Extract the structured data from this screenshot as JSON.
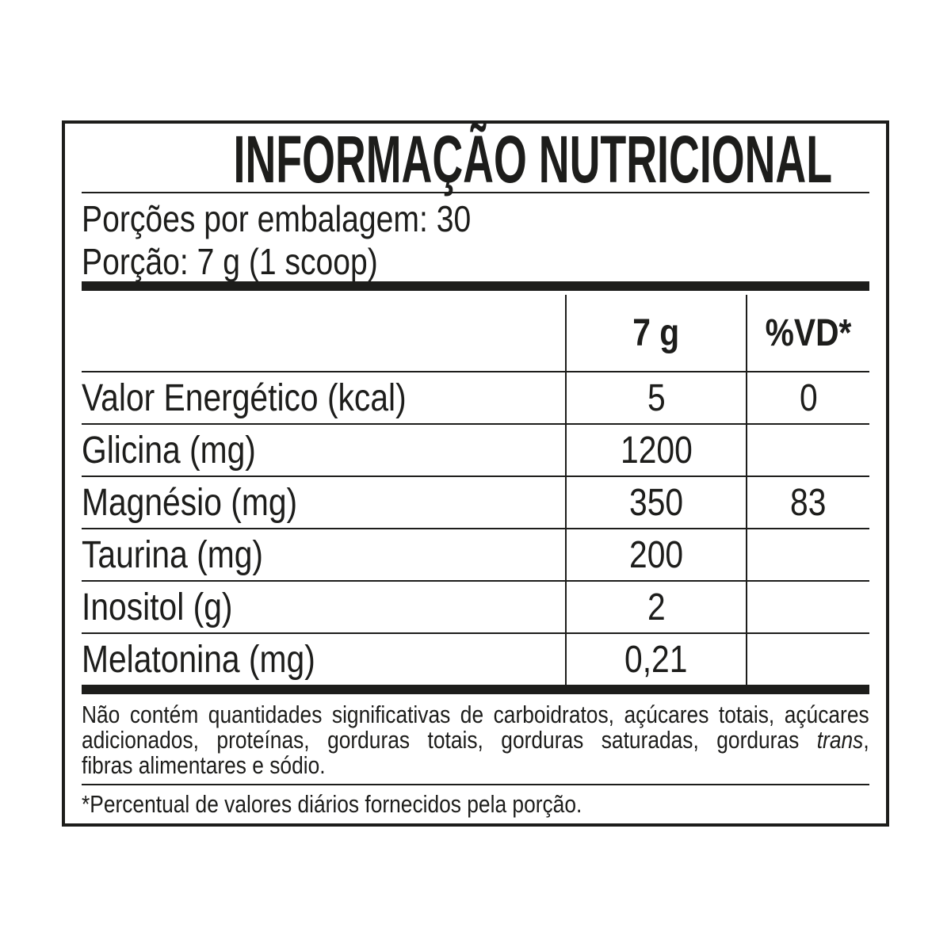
{
  "label": {
    "title": "INFORMAÇÃO NUTRICIONAL",
    "servings_line": "Porções por embalagem: 30",
    "portion_line": "Porção: 7 g (1 scoop)",
    "table": {
      "columns": [
        "7 g",
        "%VD*"
      ],
      "rows": [
        {
          "name": "Valor Energético (kcal)",
          "amount": "5",
          "dv": "0"
        },
        {
          "name": "Glicina (mg)",
          "amount": "1200",
          "dv": ""
        },
        {
          "name": "Magnésio (mg)",
          "amount": "350",
          "dv": "83"
        },
        {
          "name": "Taurina (mg)",
          "amount": "200",
          "dv": ""
        },
        {
          "name": "Inositol (g)",
          "amount": "2",
          "dv": ""
        },
        {
          "name": "Melatonina (mg)",
          "amount": "0,21",
          "dv": ""
        }
      ]
    },
    "disclaimer": {
      "line1": "Não contém quantidades significativas de carboidratos, açúcares totais, açúcares",
      "line2_before": "adicionados, proteínas, gorduras totais, gorduras saturadas, gorduras ",
      "line2_italic": "trans",
      "line2_after": ",",
      "line3": "fibras alimentares e sódio."
    },
    "footnote": "*Percentual de valores diários fornecidos pela porção.",
    "colors": {
      "ink": "#1d1d1b",
      "background": "#ffffff"
    }
  }
}
